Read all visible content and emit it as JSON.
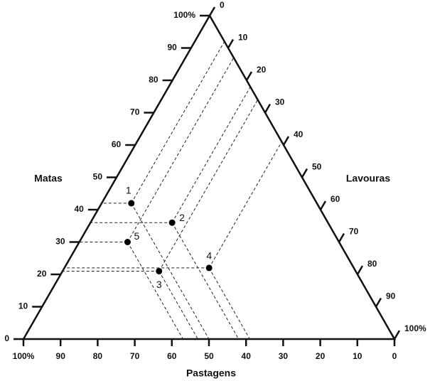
{
  "chart_data": {
    "type": "ternary",
    "color": "#000000",
    "guides": true,
    "axes": [
      {
        "title": "Matas",
        "ticks": [
          0,
          10,
          20,
          30,
          40,
          50,
          60,
          70,
          80,
          90,
          {
            "value": 100,
            "label": "100%"
          }
        ]
      },
      {
        "title": "Lavouras",
        "ticks": [
          0,
          10,
          20,
          30,
          40,
          50,
          60,
          70,
          80,
          90,
          {
            "value": 100,
            "label": "100%"
          }
        ]
      },
      {
        "title": "Pastagens",
        "ticks": [
          0,
          10,
          20,
          30,
          40,
          50,
          60,
          70,
          80,
          90,
          {
            "value": 100,
            "label": "100%"
          }
        ]
      }
    ],
    "series": [
      {
        "name": "1",
        "values": [
          42,
          8,
          50
        ]
      },
      {
        "name": "2",
        "values": [
          36,
          22,
          42
        ]
      },
      {
        "name": "3",
        "values": [
          21,
          26,
          53
        ]
      },
      {
        "name": "4",
        "values": [
          22,
          39,
          39
        ]
      },
      {
        "name": "5",
        "values": [
          30,
          13,
          57
        ]
      }
    ]
  }
}
